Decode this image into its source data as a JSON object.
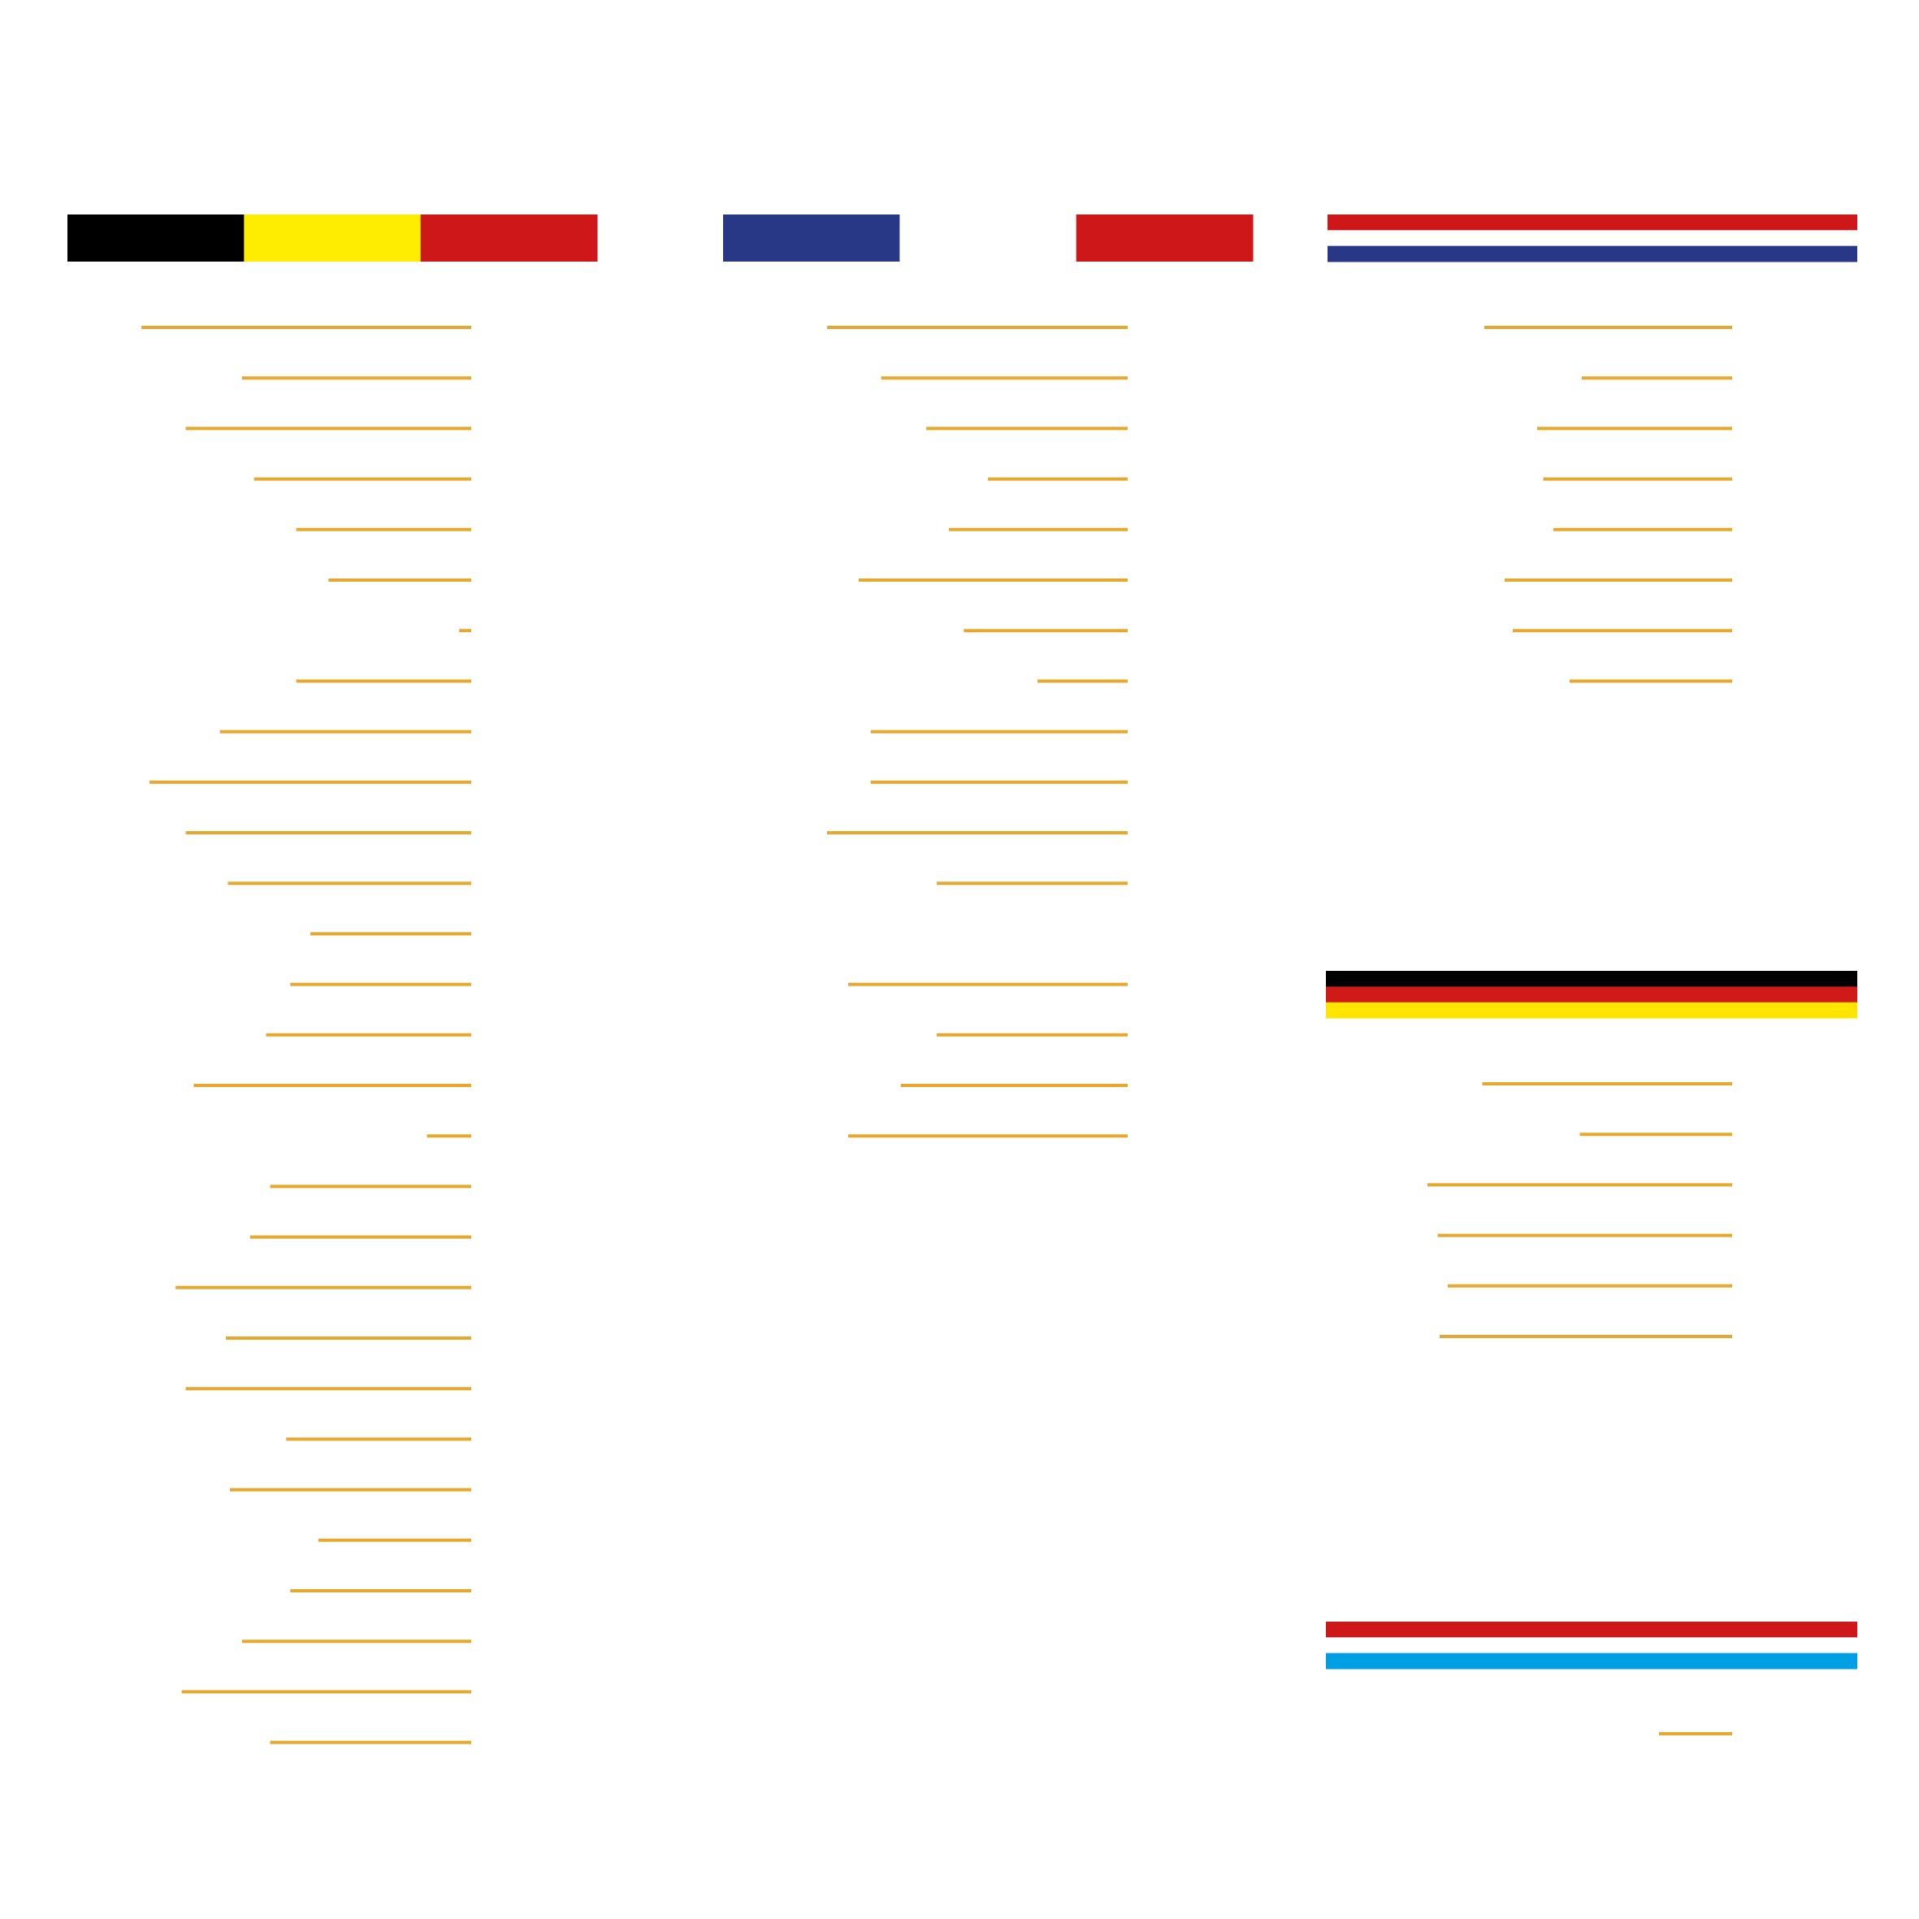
{
  "colors": {
    "background": "#ffffff",
    "line": "#E8A82E",
    "black": "#000000",
    "belgium_yellow": "#FFED00",
    "red": "#CE1719",
    "france_blue": "#293886",
    "netherlands_blue": "#293886",
    "germany_red": "#D01A1A",
    "germany_gold": "#FFE500",
    "luxembourg_blue": "#009FE3",
    "white": "#ffffff"
  },
  "groups": [
    {
      "flag": "belgium",
      "stripes": [
        "black",
        "belgium_yellow",
        "red"
      ],
      "stripe_direction": "vertical",
      "line_levels": [
        0.82,
        0.57,
        0.71,
        0.54,
        0.435,
        0.355,
        0.03,
        0.435,
        0.625,
        0.8,
        0.71,
        0.605,
        0.4,
        0.45,
        0.51,
        0.69,
        0.11,
        0.5,
        0.55,
        0.735,
        0.61,
        0.71,
        0.46,
        0.6,
        0.38,
        0.45,
        0.57,
        0.72,
        0.5
      ]
    },
    {
      "flag": "france",
      "stripes": [
        "france_blue",
        "white",
        "red"
      ],
      "stripe_direction": "vertical",
      "line_levels": [
        1.0,
        0.82,
        0.67,
        0.465,
        0.595,
        0.895,
        0.545,
        0.3,
        0.855,
        0.855,
        1.0,
        0.635,
        null,
        0.93,
        0.635,
        0.755,
        0.93
      ]
    },
    {
      "flag": "netherlands",
      "stripes": [
        "red",
        "white",
        "netherlands_blue"
      ],
      "stripe_direction": "horizontal",
      "line_levels": [
        0.61,
        0.37,
        0.48,
        0.465,
        0.44,
        0.56,
        0.54,
        0.4
      ]
    },
    {
      "flag": "germany",
      "stripes": [
        "black",
        "germany_red",
        "germany_gold"
      ],
      "stripe_direction": "horizontal",
      "line_levels": [
        0.615,
        0.375,
        0.75,
        0.725,
        0.7,
        0.72
      ]
    },
    {
      "flag": "luxembourg",
      "stripes": [
        "red",
        "white",
        "luxembourg_blue"
      ],
      "stripe_direction": "horizontal",
      "line_levels": [
        0.18
      ]
    }
  ]
}
